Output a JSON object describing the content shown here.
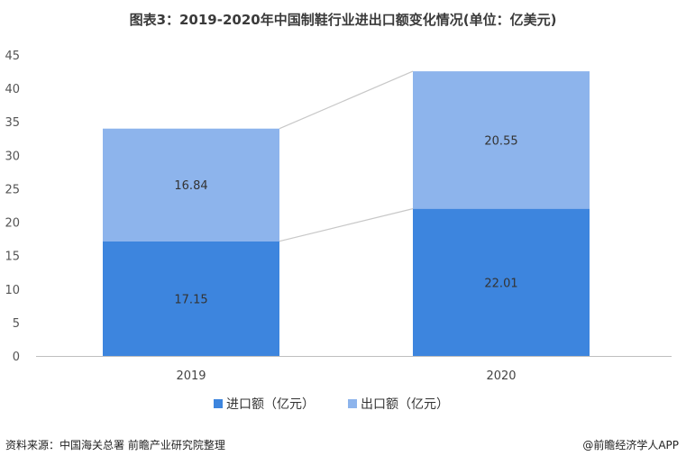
{
  "chart_data": {
    "type": "bar",
    "stacked": true,
    "title": "图表3：2019-2020年中国制鞋行业进出口额变化情况(单位：亿美元)",
    "categories": [
      "2019",
      "2020"
    ],
    "series": [
      {
        "name": "进口额（亿元）",
        "values": [
          17.15,
          22.01
        ],
        "color": "#3d85de"
      },
      {
        "name": "出口额（亿元）",
        "values": [
          16.84,
          20.55
        ],
        "color": "#8db4ec"
      }
    ],
    "ylim": [
      0,
      45
    ],
    "yticks": [
      "0",
      "5",
      "10",
      "15",
      "20",
      "25",
      "30",
      "35",
      "40",
      "45"
    ],
    "grid": false,
    "legend_position": "bottom",
    "connector_lines": true,
    "connector_color": "#c8c8c8"
  },
  "footer": {
    "source": "资料来源：中国海关总署 前瞻产业研究院整理",
    "credit": "@前瞻经济学人APP"
  }
}
